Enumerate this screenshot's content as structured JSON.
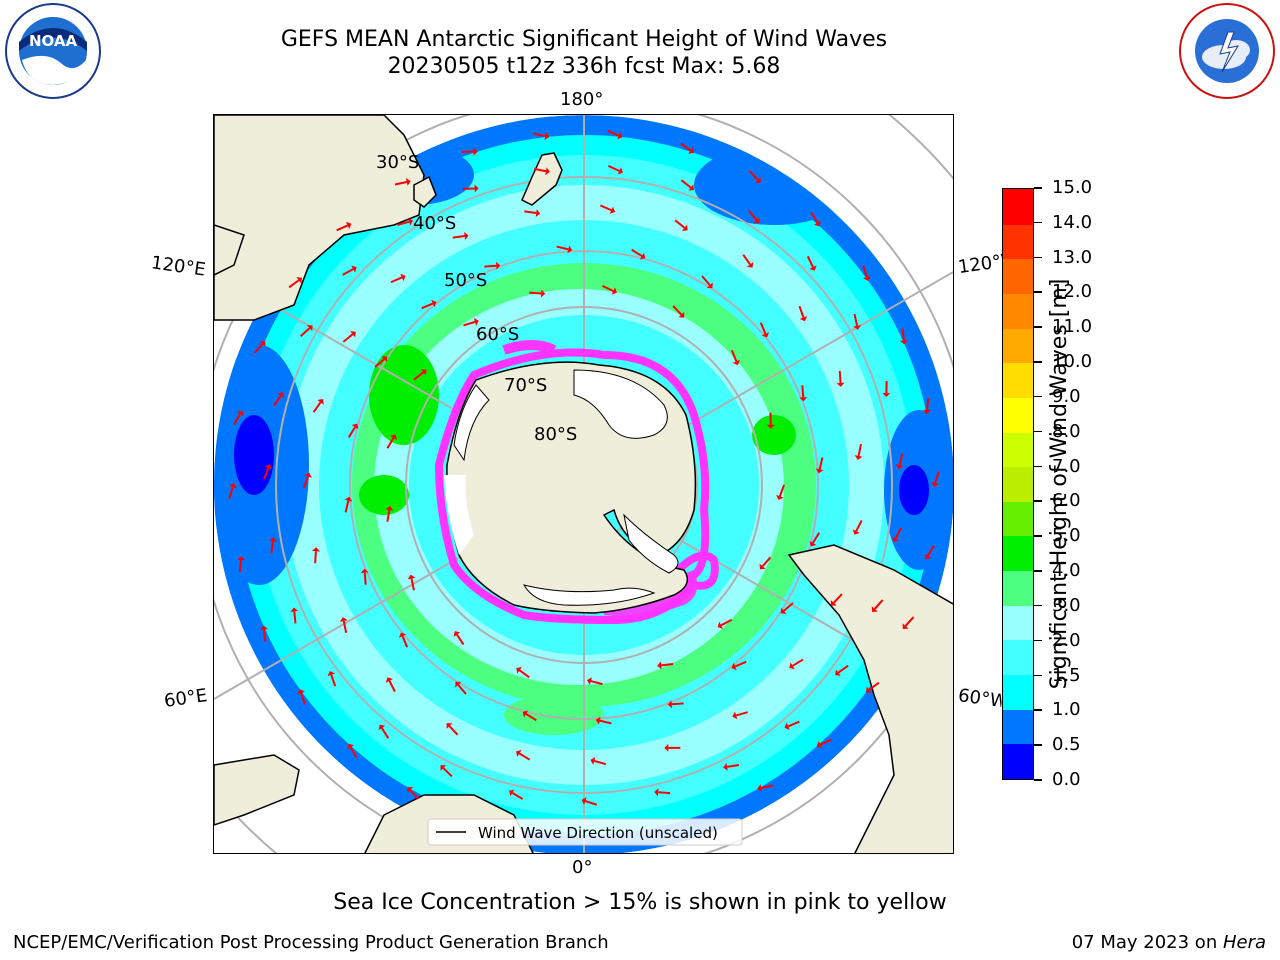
{
  "title": {
    "line1": "GEFS MEAN Antarctic Significant Height of Wind Waves",
    "line2": "20230505 t12z 336h fcst   Max: 5.68"
  },
  "logos": {
    "left": {
      "icon": "noaa-logo",
      "text": "NOAA",
      "ring_top": "NATIONAL OCEANIC AND ATMOSPHERIC ADMINISTRATION",
      "ring_bottom": "U.S. DEPARTMENT OF COMMERCE"
    },
    "right": {
      "icon": "nws-logo",
      "ring_text": "NATIONAL WEATHER SERVICE"
    }
  },
  "map": {
    "projection": "south-polar-stereographic",
    "lon_labels": {
      "top": "180°",
      "bottom": "0°",
      "upper_left": "120°E",
      "upper_right": "120°W",
      "lower_left": "60°E",
      "lower_right": "60°W"
    },
    "lat_labels": [
      "30°S",
      "40°S",
      "50°S",
      "60°S",
      "70°S",
      "80°S"
    ],
    "legend": "Wind Wave Direction (unscaled)",
    "colors": {
      "land": "#efeedb",
      "ice_shelf": "#ffffff",
      "sea_ice": "#ff33ff",
      "graticule": "#b0b0b0",
      "arrow": "#ff0000"
    }
  },
  "colorbar": {
    "title": "Significant Height of Wind Waves [m]",
    "ticks": [
      "0.0",
      "0.5",
      "1.0",
      "1.5",
      "2.0",
      "3.0",
      "4.0",
      "5.0",
      "6.0",
      "7.0",
      "8.0",
      "9.0",
      "10.0",
      "11.0",
      "12.0",
      "13.0",
      "14.0",
      "15.0"
    ],
    "colors": [
      "#0000ff",
      "#0077ff",
      "#00ffff",
      "#44ffff",
      "#99ffff",
      "#4dff80",
      "#00ee00",
      "#66ee00",
      "#bbee00",
      "#ccff00",
      "#ffff00",
      "#ffdd00",
      "#ffaa00",
      "#ff8800",
      "#ff6600",
      "#ff3300",
      "#ff0000"
    ]
  },
  "bottom_note": "Sea Ice Concentration > 15% is shown in pink to yellow",
  "footer": {
    "left": "NCEP/EMC/Verification Post Processing Product Generation Branch",
    "date": "07 May 2023 on ",
    "host": "Hera"
  }
}
